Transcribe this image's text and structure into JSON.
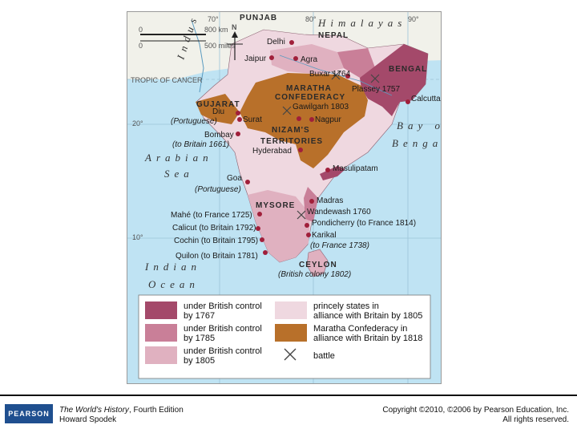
{
  "graticule": {
    "lon70": "70°",
    "lon80": "80°",
    "lon90": "90°",
    "lat20": "20°",
    "lat10": "10°",
    "tropic": "TROPIC OF CANCER"
  },
  "scale": {
    "km_zero": "0",
    "km": "800 km",
    "mi_zero": "0",
    "mi": "500 miles",
    "north": "N"
  },
  "regions": {
    "punjab": "PUNJAB",
    "himalayas": "Himalayas",
    "nepal": "NEPAL",
    "bengal": "BENGAL",
    "maratha1": "MARATHA",
    "maratha2": "CONFEDERACY",
    "gujarat": "GUJARAT",
    "nizam1": "NIZAM'S",
    "nizam2": "TERRITORIES",
    "mysore": "MYSORE",
    "ceylon": "CEYLON",
    "indus": "Indus"
  },
  "seas": {
    "arabian1": "Arabian",
    "arabian2": "Sea",
    "bay1": "Bay of",
    "bay2": "Bengal",
    "indian1": "Indian",
    "indian2": "Ocean"
  },
  "cities": {
    "delhi": "Delhi",
    "jaipur": "Jaipur",
    "agra": "Agra",
    "buxar": "Buxar 1764",
    "plassey": "Plassey 1757",
    "calcutta": "Calcutta",
    "diu": "Diu",
    "diu_note": "(Portuguese)",
    "surat": "Surat",
    "gawilgarh": "Gawilgarh 1803",
    "nagpur": "Nagpur",
    "bombay": "Bombay",
    "bombay_note": "(to Britain 1661)",
    "hyderabad": "Hyderabad",
    "masulipatam": "Masulipatam",
    "goa": "Goa",
    "goa_note": "(Portuguese)",
    "madras": "Madras",
    "wandewash": "Wandewash 1760",
    "mahe": "Mahé (to France 1725)",
    "pondicherry": "Pondicherry (to France 1814)",
    "calicut": "Calicut (to Britain 1792)",
    "cochin": "Cochin (to Britain 1795)",
    "karikal": "Karikal",
    "karikal_note": "(to France 1738)",
    "quilon": "Quilon (to Britain 1781)",
    "ceylon_note": "(British colony 1802)"
  },
  "legend": {
    "items": [
      {
        "line1": "under British control",
        "line2": "by 1767",
        "color": "#a4496a"
      },
      {
        "line1": "under British control",
        "line2": "by 1785",
        "color": "#c97f98"
      },
      {
        "line1": "under British control",
        "line2": "by 1805",
        "color": "#e0b1c0"
      },
      {
        "line1": "princely states in",
        "line2": "alliance with Britain by 1805",
        "color": "#efd8e0"
      },
      {
        "line1": "Maratha Confederacy in",
        "line2": "alliance with Britain by 1818",
        "color": "#b8702a"
      },
      {
        "line1": "battle",
        "line2": "",
        "color": ""
      }
    ]
  },
  "footer": {
    "book_title": "The World's History",
    "book_edition": ", Fourth Edition",
    "author": "Howard Spodek",
    "copyright1": "Copyright ©2010, ©2006 by Pearson Education, Inc.",
    "copyright2": "All rights reserved.",
    "logo": "PEARSON"
  },
  "colors": {
    "sea": "#bfe3f3",
    "land_outside": "#f1f1ea",
    "maratha": "#b8702a",
    "brit1767": "#a4496a",
    "brit1785": "#c97f98",
    "brit1805": "#e0b1c0",
    "princely": "#efd8e0",
    "city_dot": "#a01f3a"
  }
}
